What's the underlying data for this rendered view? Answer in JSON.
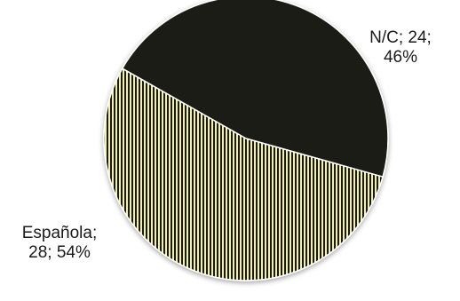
{
  "chart_data": {
    "type": "pie",
    "title": "",
    "slices": [
      {
        "category": "N/C",
        "value": 24,
        "percent": 46,
        "label_lines": [
          "N/C; 24;",
          "46%"
        ],
        "fill": "#1c1a12",
        "pattern": "solid"
      },
      {
        "category": "Española",
        "value": 28,
        "percent": 54,
        "label_lines": [
          "Española;",
          "28; 54%"
        ],
        "fill": "#f2eeb8",
        "pattern": "vertical-stripes",
        "stripe_color": "#1a1a12"
      }
    ],
    "legend": "none",
    "edge_color": "#ffffff"
  }
}
